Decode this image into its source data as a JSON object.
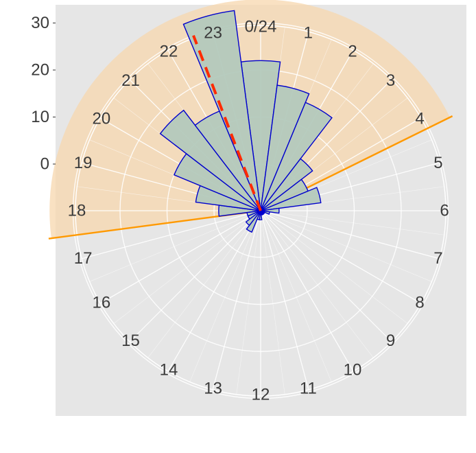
{
  "chart_data": {
    "type": "bar",
    "coordinate_system": "polar",
    "angular_axis": {
      "labels": [
        "0/24",
        "1",
        "2",
        "3",
        "4",
        "5",
        "6",
        "7",
        "8",
        "9",
        "10",
        "11",
        "12",
        "13",
        "14",
        "15",
        "16",
        "17",
        "18",
        "19",
        "20",
        "21",
        "22",
        "23"
      ],
      "direction": "clockwise",
      "zero_at": "top"
    },
    "radial_axis": {
      "ticks": [
        0,
        10,
        20,
        30
      ],
      "tick_labels": [
        "0",
        "10",
        "20",
        "30"
      ],
      "range": [
        -10,
        40
      ]
    },
    "grid": true,
    "x": [
      0,
      1,
      2,
      3,
      4,
      5,
      6,
      7,
      8,
      9,
      10,
      11,
      12,
      13,
      14,
      15,
      16,
      17,
      18,
      19,
      20,
      21,
      22,
      23
    ],
    "series": [
      {
        "values": [
          22,
          17,
          15,
          4,
          1,
          3,
          -6,
          -8,
          -9,
          -9,
          -9,
          -9,
          -8,
          -8,
          -5,
          -6,
          -7,
          -7,
          -1,
          4,
          10,
          17,
          13,
          33
        ],
        "bar_fill": "#b3c9bc",
        "bar_stroke": "#0000cc"
      }
    ],
    "highlight_sector": {
      "from_hour": 17.5,
      "to_hour": 4.25,
      "radius_value": 35,
      "fill": "#f7d7ad",
      "edge_color": "#ff9900"
    },
    "mean_direction": {
      "hour": 22.6,
      "radius_value": 30,
      "color": "#ff2a00",
      "style": "dashed"
    },
    "colors": {
      "panel_background": "#e6e6e6",
      "grid": "#ffffff",
      "text": "#3a3a3a"
    }
  }
}
